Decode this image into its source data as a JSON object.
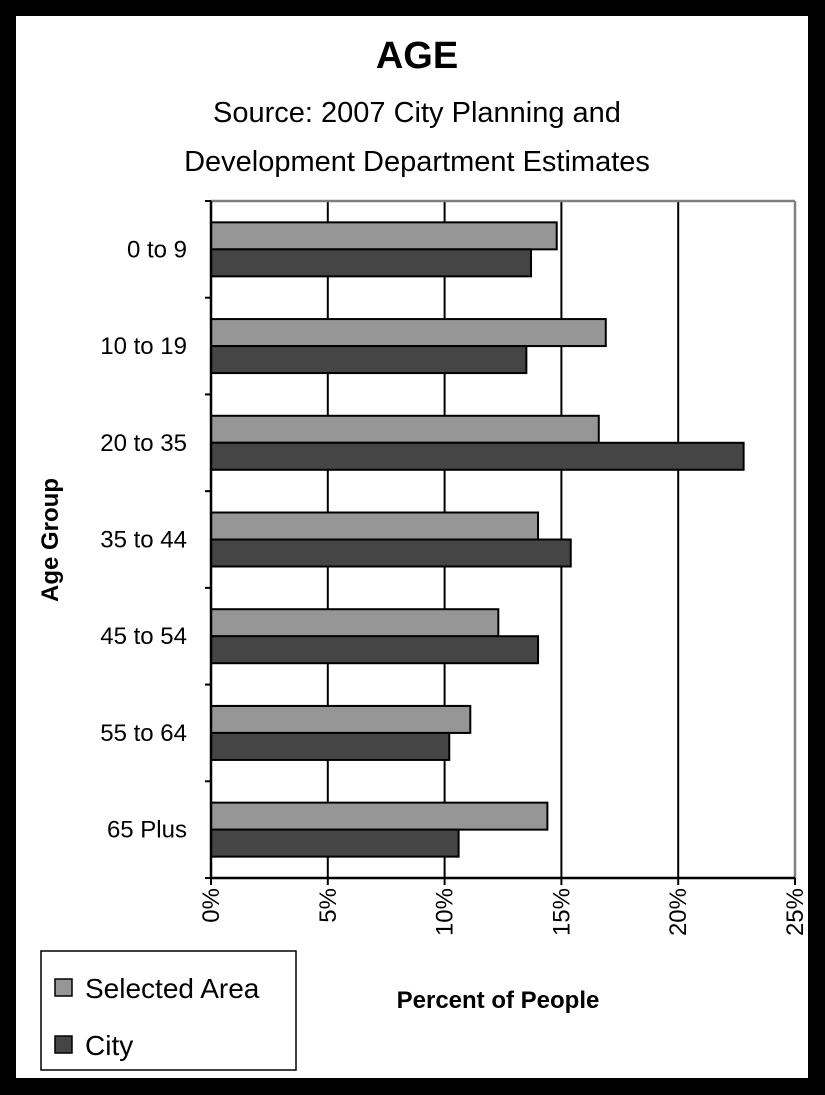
{
  "colors": {
    "background": "#000000",
    "panel": "#ffffff",
    "selected_area": "#969696",
    "city": "#454545",
    "gridline": "#000000",
    "plot_border": "#808080"
  },
  "chart_data": {
    "type": "bar",
    "orientation": "horizontal",
    "title": "AGE",
    "subtitle_lines": [
      "Source: 2007 City Planning and",
      "Development Department Estimates"
    ],
    "xlabel": "Percent of People",
    "ylabel": "Age Group",
    "categories": [
      "0 to 9",
      "10 to 19",
      "20 to 35",
      "35 to 44",
      "45 to 54",
      "55 to 64",
      "65 Plus"
    ],
    "series": [
      {
        "name": "Selected Area",
        "color": "#969696",
        "values": [
          14.8,
          16.9,
          16.6,
          14.0,
          12.3,
          11.1,
          14.4
        ]
      },
      {
        "name": "City",
        "color": "#454545",
        "values": [
          13.7,
          13.5,
          22.8,
          15.4,
          14.0,
          10.2,
          10.6
        ]
      }
    ],
    "xlim": [
      0,
      25
    ],
    "xticks": [
      0,
      5,
      10,
      15,
      20,
      25
    ],
    "xtick_labels": [
      "0%",
      "5%",
      "10%",
      "15%",
      "20%",
      "25%"
    ],
    "grid": true,
    "legend_position": "bottom-left"
  }
}
